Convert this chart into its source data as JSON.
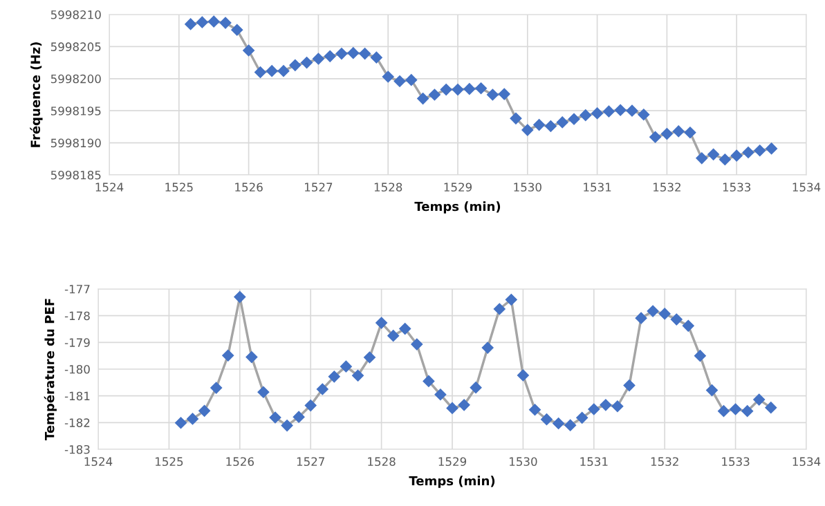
{
  "chart_data": [
    {
      "type": "line",
      "xlabel": "Temps (min)",
      "ylabel": "Fréquence (Hz)",
      "xlim": [
        1524,
        1534
      ],
      "xticks": [
        1524,
        1525,
        1526,
        1527,
        1528,
        1529,
        1530,
        1531,
        1532,
        1533,
        1534
      ],
      "ylim": [
        5998185,
        5998210
      ],
      "yticks": [
        5998185,
        5998190,
        5998195,
        5998200,
        5998205,
        5998210
      ],
      "grid": true,
      "marker": "diamond",
      "line_style": "solid",
      "x": [
        1525.167,
        1525.333,
        1525.5,
        1525.667,
        1525.833,
        1526.0,
        1526.167,
        1526.333,
        1526.5,
        1526.667,
        1526.833,
        1527.0,
        1527.167,
        1527.333,
        1527.5,
        1527.667,
        1527.833,
        1528.0,
        1528.167,
        1528.333,
        1528.5,
        1528.667,
        1528.833,
        1529.0,
        1529.167,
        1529.333,
        1529.5,
        1529.667,
        1529.833,
        1530.0,
        1530.167,
        1530.333,
        1530.5,
        1530.667,
        1530.833,
        1531.0,
        1531.167,
        1531.333,
        1531.5,
        1531.667,
        1531.833,
        1532.0,
        1532.167,
        1532.333,
        1532.5,
        1532.667,
        1532.833,
        1533.0,
        1533.167,
        1533.333,
        1533.5
      ],
      "series": [
        {
          "color": "#4472c4",
          "values": [
            5998208.5,
            5998208.8,
            5998208.9,
            5998208.7,
            5998207.6,
            5998204.4,
            5998201.0,
            5998201.2,
            5998201.2,
            5998202.1,
            5998202.5,
            5998203.1,
            5998203.5,
            5998203.9,
            5998204.0,
            5998203.9,
            5998203.3,
            5998200.3,
            5998199.6,
            5998199.8,
            5998196.9,
            5998197.5,
            5998198.3,
            5998198.3,
            5998198.4,
            5998198.5,
            5998197.5,
            5998197.6,
            5998193.8,
            5998192.0,
            5998192.8,
            5998192.6,
            5998193.2,
            5998193.7,
            5998194.3,
            5998194.6,
            5998194.9,
            5998195.1,
            5998195.0,
            5998194.4,
            5998190.9,
            5998191.4,
            5998191.8,
            5998191.6,
            5998187.6,
            5998188.2,
            5998187.4,
            5998188.0,
            5998188.5,
            5998188.8,
            5998189.1
          ]
        }
      ]
    },
    {
      "type": "line",
      "xlabel": "Temps (min)",
      "ylabel": "Température du PEF",
      "xlim": [
        1524,
        1534
      ],
      "xticks": [
        1524,
        1525,
        1526,
        1527,
        1528,
        1529,
        1530,
        1531,
        1532,
        1533,
        1534
      ],
      "ylim": [
        -183,
        -177
      ],
      "yticks": [
        -183,
        -182,
        -181,
        -180,
        -179,
        -178,
        -177
      ],
      "grid": true,
      "marker": "diamond",
      "line_style": "solid",
      "x": [
        1525.167,
        1525.333,
        1525.5,
        1525.667,
        1525.833,
        1526.0,
        1526.167,
        1526.333,
        1526.5,
        1526.667,
        1526.833,
        1527.0,
        1527.167,
        1527.333,
        1527.5,
        1527.667,
        1527.833,
        1528.0,
        1528.167,
        1528.333,
        1528.5,
        1528.667,
        1528.833,
        1529.0,
        1529.167,
        1529.333,
        1529.5,
        1529.667,
        1529.833,
        1530.0,
        1530.167,
        1530.333,
        1530.5,
        1530.667,
        1530.833,
        1531.0,
        1531.167,
        1531.333,
        1531.5,
        1531.667,
        1531.833,
        1532.0,
        1532.167,
        1532.333,
        1532.5,
        1532.667,
        1532.833,
        1533.0,
        1533.167,
        1533.333,
        1533.5
      ],
      "series": [
        {
          "color": "#4472c4",
          "values": [
            -182.01,
            -181.86,
            -181.56,
            -180.7,
            -179.49,
            -177.3,
            -179.55,
            -180.86,
            -181.81,
            -182.11,
            -181.79,
            -181.36,
            -180.75,
            -180.28,
            -179.9,
            -180.24,
            -179.56,
            -178.27,
            -178.75,
            -178.49,
            -179.07,
            -180.45,
            -180.95,
            -181.46,
            -181.34,
            -180.69,
            -179.2,
            -177.75,
            -177.4,
            -180.23,
            -181.52,
            -181.88,
            -182.03,
            -182.1,
            -181.82,
            -181.5,
            -181.34,
            -181.39,
            -180.61,
            -178.09,
            -177.83,
            -177.93,
            -178.14,
            -178.38,
            -179.5,
            -180.79,
            -181.57,
            -181.5,
            -181.57,
            -181.14,
            -181.44
          ]
        }
      ]
    }
  ]
}
